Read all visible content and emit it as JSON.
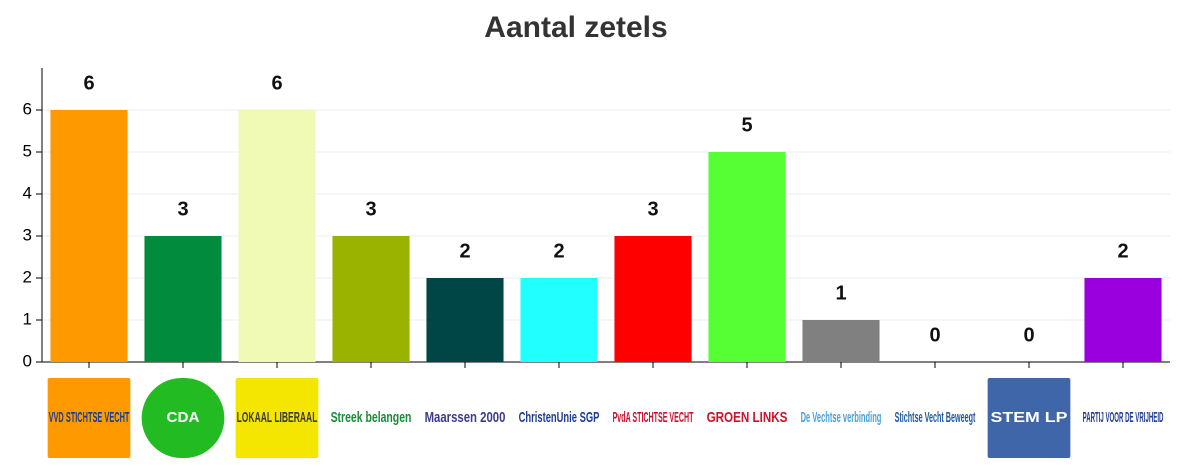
{
  "chart_data": {
    "type": "bar",
    "title": "Aantal zetels",
    "categories": [
      "VVD STICHTSE VECHT",
      "CDA",
      "LOKAAL LIBERAAL",
      "Streek belangen",
      "Maarssen 2000",
      "ChristenUnie SGP",
      "PvdA STICHTSE VECHT",
      "GROEN LINKS",
      "De Vechtse verbinding",
      "Stichtse Vecht Beweegt",
      "STEM LP",
      "PARTIJ VOOR DE VRIJHEID"
    ],
    "values": [
      6,
      3,
      6,
      3,
      2,
      2,
      3,
      5,
      1,
      0,
      0,
      2
    ],
    "colors": [
      "#ff9900",
      "#008c3c",
      "#f0fab4",
      "#99b300",
      "#004646",
      "#22ffff",
      "#ff0000",
      "#55ff33",
      "#808080",
      "#cccccc",
      "#cccccc",
      "#9900dd"
    ],
    "label_colors": [
      "#1f3a93",
      "#ffffff",
      "#3a3a3a",
      "#1a8a3a",
      "#3c3c8c",
      "#1f3a93",
      "#c8102e",
      "#d0112b",
      "#4aa0d8",
      "#1f5aa0",
      "#ffffff",
      "#1f3a93"
    ],
    "label_backgrounds": [
      "#ff9900",
      "#22bb22",
      "#f5e600",
      "none",
      "none",
      "none",
      "none",
      "none",
      "none",
      "none",
      "#3e66a8",
      "none"
    ],
    "ylim": [
      0,
      7
    ],
    "yticks": [
      0,
      1,
      2,
      3,
      4,
      5,
      6
    ],
    "grid": true
  }
}
